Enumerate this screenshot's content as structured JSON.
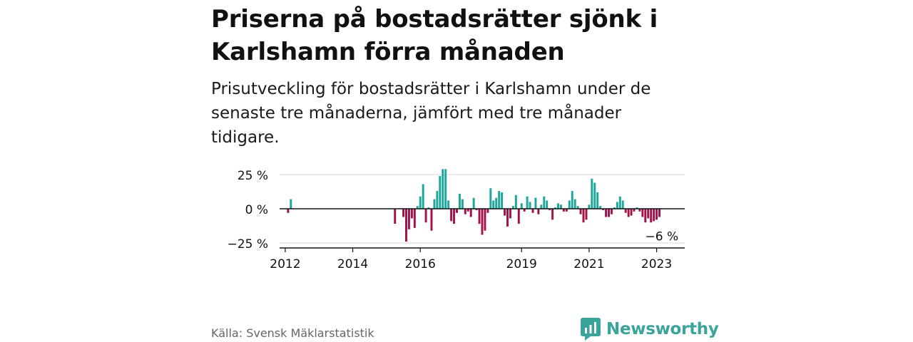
{
  "header": {
    "title": "Priserna på bostadsrätter sjönk i Karlshamn förra månaden",
    "subtitle": "Prisutveckling för bostadsrätter i Karlshamn under de senaste tre månaderna, jämfört med tre månader tidigare."
  },
  "footer": {
    "source": "Källa: Svensk Mäklarstatistik",
    "brand": "Newsworthy"
  },
  "colors": {
    "positive": "#1ea69a",
    "negative": "#a3134a",
    "brand": "#3aa39a",
    "grid": "#d9d9d9"
  },
  "chart_data": {
    "type": "bar",
    "title": "",
    "xlabel": "",
    "ylabel": "",
    "unit": "%",
    "ylim": [
      -28,
      31
    ],
    "y_ticks": [
      25,
      0,
      -25
    ],
    "y_tick_labels": [
      "25 %",
      "0 %",
      "−25 %"
    ],
    "x_ticks": [
      {
        "year": 2012,
        "label": "2012"
      },
      {
        "year": 2014,
        "label": "2014"
      },
      {
        "year": 2016,
        "label": "2016"
      },
      {
        "year": 2019,
        "label": "2019"
      },
      {
        "year": 2021,
        "label": "2021"
      },
      {
        "year": 2023,
        "label": "2023"
      }
    ],
    "grid": true,
    "last_value_label": "−6 %",
    "series": [
      {
        "values": [
          [
            "2012-02",
            -3
          ],
          [
            "2012-03",
            7
          ],
          [
            "2015-04",
            -11
          ],
          [
            "2015-07",
            -6
          ],
          [
            "2015-08",
            -24
          ],
          [
            "2015-09",
            -15
          ],
          [
            "2015-10",
            -7
          ],
          [
            "2015-11",
            -14
          ],
          [
            "2015-12",
            2
          ],
          [
            "2016-01",
            9
          ],
          [
            "2016-02",
            18
          ],
          [
            "2016-03",
            -10
          ],
          [
            "2016-04",
            1
          ],
          [
            "2016-05",
            -16
          ],
          [
            "2016-06",
            7
          ],
          [
            "2016-07",
            13
          ],
          [
            "2016-08",
            24
          ],
          [
            "2016-09",
            29
          ],
          [
            "2016-10",
            29
          ],
          [
            "2016-11",
            6
          ],
          [
            "2016-12",
            -9
          ],
          [
            "2017-01",
            -11
          ],
          [
            "2017-02",
            -3
          ],
          [
            "2017-03",
            11
          ],
          [
            "2017-04",
            7
          ],
          [
            "2017-05",
            -4
          ],
          [
            "2017-06",
            -2
          ],
          [
            "2017-07",
            -6
          ],
          [
            "2017-08",
            8
          ],
          [
            "2017-09",
            -1
          ],
          [
            "2017-10",
            -11
          ],
          [
            "2017-11",
            -19
          ],
          [
            "2017-12",
            -16
          ],
          [
            "2018-01",
            -3
          ],
          [
            "2018-02",
            15
          ],
          [
            "2018-03",
            6
          ],
          [
            "2018-04",
            8
          ],
          [
            "2018-05",
            13
          ],
          [
            "2018-06",
            12
          ],
          [
            "2018-07",
            -5
          ],
          [
            "2018-08",
            -13
          ],
          [
            "2018-09",
            -7
          ],
          [
            "2018-10",
            2
          ],
          [
            "2018-11",
            10
          ],
          [
            "2018-12",
            -11
          ],
          [
            "2019-01",
            4
          ],
          [
            "2019-02",
            -2
          ],
          [
            "2019-03",
            9
          ],
          [
            "2019-04",
            5
          ],
          [
            "2019-05",
            -3
          ],
          [
            "2019-06",
            8
          ],
          [
            "2019-07",
            -4
          ],
          [
            "2019-08",
            3
          ],
          [
            "2019-09",
            9
          ],
          [
            "2019-10",
            6
          ],
          [
            "2019-11",
            -1
          ],
          [
            "2019-12",
            -8
          ],
          [
            "2020-01",
            1
          ],
          [
            "2020-02",
            4
          ],
          [
            "2020-03",
            3
          ],
          [
            "2020-04",
            -2
          ],
          [
            "2020-05",
            -2
          ],
          [
            "2020-06",
            6
          ],
          [
            "2020-07",
            13
          ],
          [
            "2020-08",
            7
          ],
          [
            "2020-09",
            2
          ],
          [
            "2020-10",
            -4
          ],
          [
            "2020-11",
            -10
          ],
          [
            "2020-12",
            -8
          ],
          [
            "2021-01",
            3
          ],
          [
            "2021-02",
            22
          ],
          [
            "2021-03",
            19
          ],
          [
            "2021-04",
            12
          ],
          [
            "2021-05",
            2
          ],
          [
            "2021-06",
            -1
          ],
          [
            "2021-07",
            -6
          ],
          [
            "2021-08",
            -6
          ],
          [
            "2021-09",
            -4
          ],
          [
            "2021-10",
            1
          ],
          [
            "2021-11",
            5
          ],
          [
            "2021-12",
            9
          ],
          [
            "2022-01",
            6
          ],
          [
            "2022-02",
            -3
          ],
          [
            "2022-03",
            -6
          ],
          [
            "2022-04",
            -5
          ],
          [
            "2022-05",
            -2
          ],
          [
            "2022-06",
            1
          ],
          [
            "2022-07",
            -2
          ],
          [
            "2022-08",
            -6
          ],
          [
            "2022-09",
            -10
          ],
          [
            "2022-10",
            -7
          ],
          [
            "2022-11",
            -10
          ],
          [
            "2022-12",
            -9
          ],
          [
            "2023-01",
            -8
          ],
          [
            "2023-02",
            -6
          ]
        ]
      }
    ]
  }
}
